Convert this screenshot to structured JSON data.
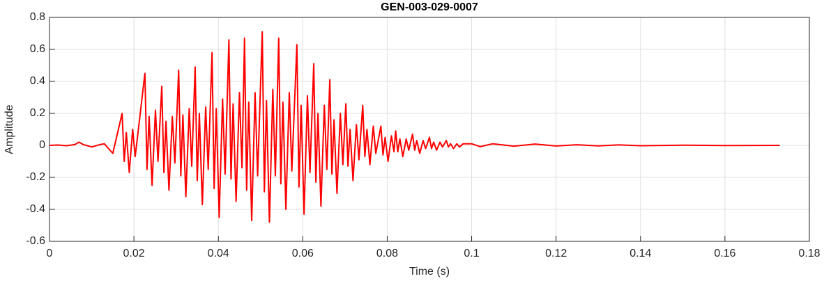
{
  "chart_data": {
    "type": "line",
    "title": "GEN-003-029-0007",
    "xlabel": "Time (s)",
    "ylabel": "Amplitude",
    "color": "#ff0000",
    "grid": true,
    "xlim": [
      0,
      0.18
    ],
    "xticks": [
      0,
      0.02,
      0.04,
      0.06,
      0.08,
      0.1,
      0.12,
      0.14,
      0.16,
      0.18
    ],
    "ylim": [
      -0.6,
      0.8
    ],
    "yticks": [
      -0.6,
      -0.4,
      -0.2,
      0,
      0.2,
      0.4,
      0.6,
      0.8
    ],
    "x": [
      0,
      0.002,
      0.004,
      0.006,
      0.007,
      0.008,
      0.01,
      0.012,
      0.013,
      0.014,
      0.015,
      0.0172,
      0.0177,
      0.0182,
      0.0189,
      0.0197,
      0.0203,
      0.0226,
      0.0231,
      0.0236,
      0.0243,
      0.0251,
      0.0257,
      0.0266,
      0.0271,
      0.0276,
      0.0283,
      0.0291,
      0.0297,
      0.0306,
      0.0311,
      0.0316,
      0.0323,
      0.0331,
      0.0337,
      0.0345,
      0.035,
      0.0355,
      0.0362,
      0.037,
      0.0376,
      0.0385,
      0.039,
      0.0395,
      0.0402,
      0.041,
      0.0416,
      0.0425,
      0.043,
      0.0435,
      0.0442,
      0.045,
      0.0456,
      0.0462,
      0.0467,
      0.0472,
      0.0479,
      0.0487,
      0.0493,
      0.0504,
      0.0509,
      0.0514,
      0.0521,
      0.0529,
      0.0535,
      0.0543,
      0.0548,
      0.0553,
      0.056,
      0.0568,
      0.0574,
      0.0586,
      0.0591,
      0.0596,
      0.0603,
      0.0611,
      0.0617,
      0.0626,
      0.0631,
      0.0636,
      0.0643,
      0.0651,
      0.0657,
      0.0664,
      0.0669,
      0.0674,
      0.0681,
      0.0689,
      0.0695,
      0.0702,
      0.0707,
      0.0712,
      0.0719,
      0.0727,
      0.0733,
      0.0742,
      0.0747,
      0.0752,
      0.0759,
      0.0767,
      0.0773,
      0.0785,
      0.079,
      0.0795,
      0.0802,
      0.081,
      0.0816,
      0.082,
      0.0825,
      0.083,
      0.0837,
      0.0845,
      0.0851,
      0.086,
      0.0865,
      0.087,
      0.0877,
      0.0885,
      0.0891,
      0.09,
      0.0905,
      0.091,
      0.0917,
      0.0925,
      0.0931,
      0.094,
      0.0945,
      0.095,
      0.0957,
      0.0965,
      0.0971,
      0.098,
      0.1,
      0.102,
      0.105,
      0.11,
      0.115,
      0.12,
      0.125,
      0.13,
      0.135,
      0.14,
      0.15,
      0.16,
      0.173
    ],
    "values": [
      0,
      0.002,
      -0.002,
      0.005,
      0.02,
      0.005,
      -0.01,
      0.005,
      0.01,
      -0.02,
      -0.05,
      0.2,
      -0.1,
      0.08,
      -0.17,
      0.1,
      -0.07,
      0.45,
      -0.15,
      0.18,
      -0.25,
      0.22,
      -0.1,
      0.37,
      -0.17,
      0.15,
      -0.28,
      0.18,
      -0.11,
      0.47,
      -0.19,
      0.19,
      -0.32,
      0.23,
      -0.13,
      0.49,
      -0.22,
      0.2,
      -0.37,
      0.24,
      -0.15,
      0.58,
      -0.27,
      0.23,
      -0.45,
      0.29,
      -0.18,
      0.66,
      -0.21,
      0.26,
      -0.35,
      0.33,
      -0.14,
      0.67,
      -0.28,
      0.27,
      -0.47,
      0.33,
      -0.19,
      0.71,
      -0.29,
      0.28,
      -0.48,
      0.35,
      -0.19,
      0.67,
      -0.24,
      0.27,
      -0.4,
      0.33,
      -0.16,
      0.63,
      -0.26,
      0.25,
      -0.43,
      0.31,
      -0.17,
      0.51,
      -0.23,
      0.2,
      -0.38,
      0.25,
      -0.15,
      0.41,
      -0.18,
      0.16,
      -0.3,
      0.2,
      -0.12,
      0.26,
      -0.13,
      0.1,
      -0.22,
      0.13,
      -0.09,
      0.25,
      -0.07,
      0.1,
      -0.12,
      0.12,
      -0.05,
      0.12,
      -0.06,
      0.05,
      -0.1,
      0.06,
      -0.04,
      0.09,
      -0.04,
      0.04,
      -0.07,
      0.04,
      -0.03,
      0.07,
      -0.03,
      0.03,
      -0.05,
      0.03,
      -0.02,
      0.05,
      -0.02,
      0.02,
      -0.03,
      0.02,
      -0.01,
      0.03,
      -0.01,
      0.01,
      -0.02,
      0.01,
      -0.01,
      0.01,
      0.01,
      -0.008,
      0.01,
      -0.005,
      0.008,
      -0.004,
      0.004,
      -0.003,
      0.003,
      -0.002,
      0.001,
      -0.001,
      0
    ]
  }
}
